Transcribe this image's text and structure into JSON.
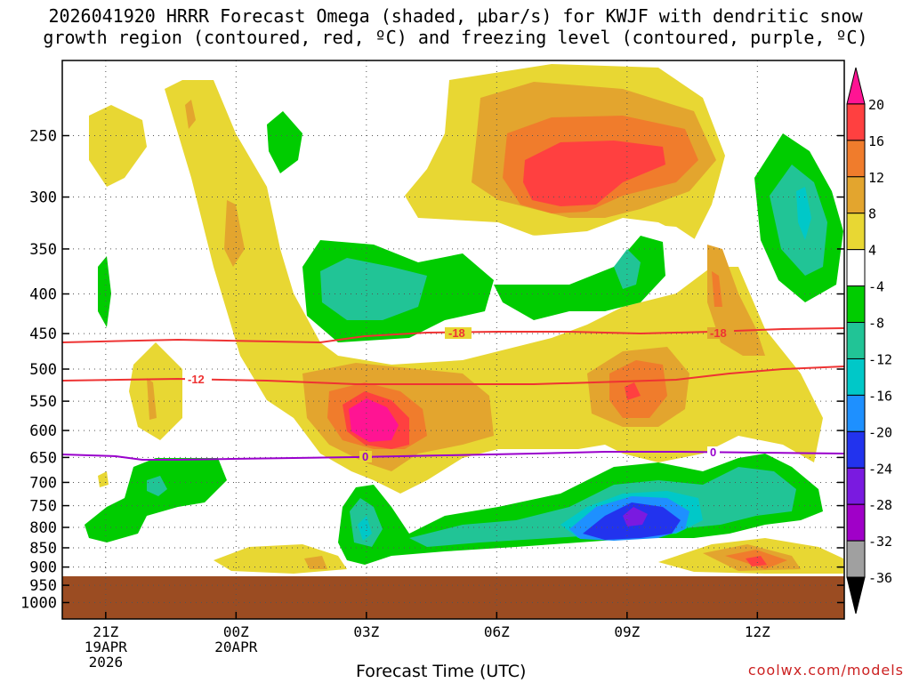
{
  "chart_data": {
    "type": "heatmap",
    "title_line1": "2026041920 HRRR Forecast Omega (shaded, μbar/s) for KWJF with dendritic snow",
    "title_line2": "growth region (contoured, red, ºC) and freezing level (contoured, purple, ºC)",
    "xlabel": "Forecast Time (UTC)",
    "credit": "coolwx.com/models",
    "x_ticks": [
      {
        "hour": 1,
        "label": "21Z",
        "sub1": "19APR",
        "sub2": "2026"
      },
      {
        "hour": 4,
        "label": "00Z",
        "sub1": "20APR",
        "sub2": ""
      },
      {
        "hour": 7,
        "label": "03Z",
        "sub1": "",
        "sub2": ""
      },
      {
        "hour": 10,
        "label": "06Z",
        "sub1": "",
        "sub2": ""
      },
      {
        "hour": 13,
        "label": "09Z",
        "sub1": "",
        "sub2": ""
      },
      {
        "hour": 16,
        "label": "12Z",
        "sub1": "",
        "sub2": ""
      }
    ],
    "x_range_hours": [
      0,
      18
    ],
    "y_ticks": [
      "250",
      "300",
      "350",
      "400",
      "450",
      "500",
      "550",
      "600",
      "650",
      "700",
      "750",
      "800",
      "850",
      "900",
      "950",
      "1000"
    ],
    "y_range_mb": [
      200,
      1050
    ],
    "colorbar": {
      "labels": [
        "20",
        "16",
        "12",
        "8",
        "4",
        "-4",
        "-8",
        "-12",
        "-16",
        "-20",
        "-24",
        "-28",
        "-32",
        "-36"
      ],
      "colors": [
        "#ff1493",
        "#ff4040",
        "#f07c2c",
        "#e3a52e",
        "#e8d733",
        "#ffffff",
        "#00cc00",
        "#21c496",
        "#00c8c8",
        "#1e90ff",
        "#2233ee",
        "#7a1ae0",
        "#a000c8",
        "#a0a0a0",
        "#000000"
      ]
    },
    "contours": [
      {
        "name": "-18",
        "color": "#ee3333",
        "label": "-18"
      },
      {
        "name": "-12",
        "color": "#ee3333",
        "label": "-12"
      },
      {
        "name": "freezing",
        "color": "#9900cc",
        "label": "0"
      }
    ],
    "ground_color": "#9b4c22"
  }
}
